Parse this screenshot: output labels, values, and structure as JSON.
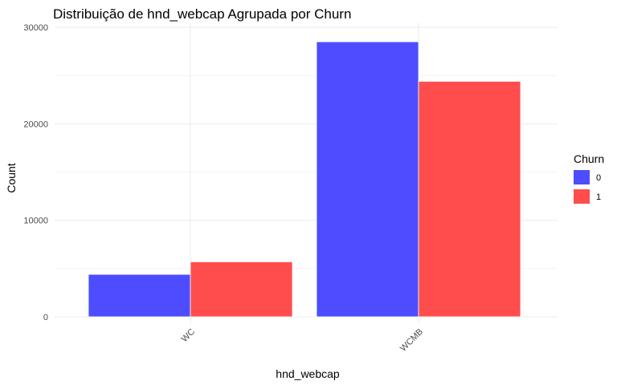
{
  "chart_data": {
    "type": "bar",
    "title": "Distribuição de hnd_webcap Agrupada por Churn",
    "xlabel": "hnd_webcap",
    "ylabel": "Count",
    "categories": [
      "WC",
      "WCMB"
    ],
    "series": [
      {
        "name": "0",
        "values": [
          4400,
          28500
        ],
        "color": "#4d4dff"
      },
      {
        "name": "1",
        "values": [
          5700,
          24400
        ],
        "color": "#ff4d4d"
      }
    ],
    "ylim": [
      0,
      30000
    ],
    "yticks": [
      0,
      10000,
      20000,
      30000
    ],
    "ytick_labels": [
      "0",
      "10000",
      "20000",
      "30000"
    ],
    "legend": {
      "title": "Churn",
      "position": "right"
    },
    "grid": true
  }
}
